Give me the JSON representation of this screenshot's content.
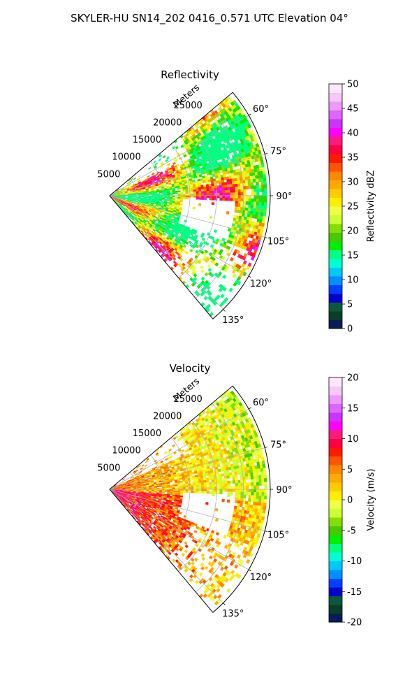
{
  "figure": {
    "title": "SKYLER-HU  SN14_202  0416_0.571 UTC Elevation 04°"
  },
  "chart_data": [
    {
      "type": "polar-sector",
      "title": "Reflectivity",
      "radial_axis_label": "Meters",
      "radial_ticks": [
        "5000",
        "10000",
        "15000",
        "20000",
        "25000"
      ],
      "radial_tick_values": [
        5000,
        10000,
        15000,
        20000,
        25000
      ],
      "r_max": 30000,
      "theta_range_deg": [
        50,
        140
      ],
      "theta_ticks": [
        "60°",
        "75°",
        "90°",
        "105°",
        "120°",
        "135°"
      ],
      "theta_tick_values": [
        60,
        75,
        90,
        105,
        120,
        135
      ],
      "grid": true,
      "colorbar": {
        "label": "Reflectivity dBZ",
        "range": [
          0,
          50
        ],
        "ticks": [
          "0",
          "5",
          "10",
          "15",
          "20",
          "25",
          "30",
          "35",
          "40",
          "45",
          "50"
        ],
        "tick_values": [
          0,
          5,
          10,
          15,
          20,
          25,
          30,
          35,
          40,
          45,
          50
        ],
        "colors": [
          "#081d58",
          "#0a3d2a",
          "#0a5a3a",
          "#0000cc",
          "#0040ff",
          "#0090ff",
          "#00c8ff",
          "#00ffd0",
          "#00ff80",
          "#00ee00",
          "#44cc00",
          "#88dd00",
          "#ccff33",
          "#eeff44",
          "#ffee00",
          "#ffcc00",
          "#ffaa00",
          "#ff8800",
          "#ff5500",
          "#ff1a00",
          "#ff0040",
          "#ff1a80",
          "#ff00ff",
          "#cc33ff",
          "#dd66ff",
          "#ee99ff",
          "#f6c8f6",
          "#ffe8ff"
        ]
      }
    },
    {
      "type": "polar-sector",
      "title": "Velocity",
      "radial_axis_label": "Meters",
      "radial_ticks": [
        "5000",
        "10000",
        "15000",
        "20000",
        "25000"
      ],
      "radial_tick_values": [
        5000,
        10000,
        15000,
        20000,
        25000
      ],
      "r_max": 30000,
      "theta_range_deg": [
        50,
        140
      ],
      "theta_ticks": [
        "60°",
        "75°",
        "90°",
        "105°",
        "120°",
        "135°"
      ],
      "theta_tick_values": [
        60,
        75,
        90,
        105,
        120,
        135
      ],
      "grid": true,
      "colorbar": {
        "label": "Velocity (m/s)",
        "range": [
          -20,
          20
        ],
        "ticks": [
          "-20",
          "-15",
          "-10",
          "-5",
          "0",
          "5",
          "10",
          "15",
          "20"
        ],
        "tick_values": [
          -20,
          -15,
          -10,
          -5,
          0,
          5,
          10,
          15,
          20
        ],
        "colors": [
          "#081d58",
          "#0a3d2a",
          "#0a5a3a",
          "#0000cc",
          "#0040ff",
          "#0090ff",
          "#00c8ff",
          "#00ffd0",
          "#00ff80",
          "#00ee00",
          "#44cc00",
          "#88dd00",
          "#ccff33",
          "#eeff44",
          "#ffee00",
          "#ffcc00",
          "#ffaa00",
          "#ff8800",
          "#ff5500",
          "#ff1a00",
          "#ff0040",
          "#ff1a80",
          "#ff00ff",
          "#cc33ff",
          "#dd66ff",
          "#ee99ff",
          "#f6c8f6",
          "#ffe8ff"
        ]
      }
    }
  ]
}
